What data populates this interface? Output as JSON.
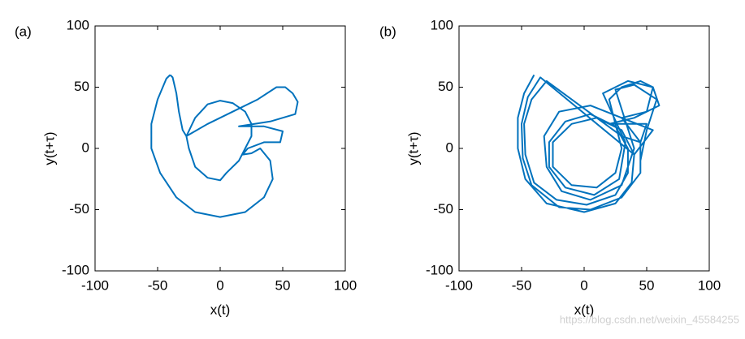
{
  "chart_data": [
    {
      "type": "line",
      "label": "(a)",
      "xlabel": "x(t)",
      "ylabel": "y(t+τ)",
      "color": "#0072bd",
      "xlim": [
        -100,
        100
      ],
      "ylim": [
        -100,
        100
      ],
      "xticks": [
        -100,
        -50,
        0,
        50,
        100
      ],
      "yticks": [
        -100,
        -50,
        0,
        50,
        100
      ],
      "x": [
        -40,
        -38,
        -35,
        -33,
        -30,
        -27,
        -20,
        -10,
        0,
        10,
        20,
        25,
        25,
        20,
        15,
        5,
        0,
        -10,
        -20,
        -25,
        -27,
        -10,
        10,
        30,
        45,
        52,
        58,
        62,
        60,
        40,
        15,
        35,
        50,
        48,
        35,
        22,
        18,
        25,
        32,
        40,
        42,
        35,
        20,
        0,
        -20,
        -35,
        -48,
        -55,
        -55,
        -50,
        -43,
        -40
      ],
      "y": [
        60,
        58,
        45,
        30,
        15,
        10,
        25,
        36,
        39,
        37,
        30,
        20,
        10,
        0,
        -10,
        -20,
        -26,
        -24,
        -15,
        0,
        10,
        20,
        30,
        40,
        50,
        50,
        45,
        38,
        28,
        22,
        18,
        18,
        14,
        5,
        5,
        0,
        -5,
        -4,
        0,
        -10,
        -25,
        -40,
        -52,
        -56,
        -52,
        -40,
        -20,
        0,
        20,
        40,
        57,
        60
      ]
    },
    {
      "type": "line",
      "label": "(b)",
      "xlabel": "x(t)",
      "ylabel": "y(t+τ)",
      "color": "#0072bd",
      "xlim": [
        -100,
        100
      ],
      "ylim": [
        -100,
        100
      ],
      "xticks": [
        -100,
        -50,
        0,
        50,
        100
      ],
      "yticks": [
        -100,
        -50,
        0,
        50,
        100
      ],
      "x": [
        -40,
        -48,
        -53,
        -53,
        -47,
        -30,
        0,
        25,
        38,
        40,
        30,
        10,
        -10,
        -25,
        -25,
        -10,
        10,
        25,
        30,
        20,
        30,
        45,
        55,
        60,
        40,
        20,
        50,
        45,
        30,
        -30,
        -42,
        -48,
        -47,
        -40,
        -22,
        2,
        25,
        35,
        35,
        25,
        5,
        -15,
        -28,
        -28,
        -15,
        8,
        28,
        33,
        15,
        35,
        55,
        50,
        30,
        55,
        40,
        -35,
        -45,
        -50,
        -49,
        -42,
        -20,
        5,
        30,
        45,
        45,
        30,
        5,
        -20,
        -32,
        -30,
        -18,
        5,
        30,
        40,
        25,
        40,
        58,
        50,
        45
      ],
      "y": [
        60,
        45,
        25,
        0,
        -25,
        -45,
        -52,
        -45,
        -28,
        -5,
        15,
        25,
        20,
        5,
        -15,
        -30,
        -32,
        -20,
        0,
        40,
        50,
        55,
        50,
        35,
        25,
        20,
        20,
        5,
        10,
        55,
        40,
        20,
        -5,
        -28,
        -42,
        -46,
        -38,
        -20,
        0,
        18,
        28,
        22,
        5,
        -15,
        -32,
        -38,
        -25,
        5,
        45,
        55,
        50,
        30,
        25,
        15,
        -5,
        58,
        42,
        20,
        -8,
        -30,
        -48,
        -50,
        -40,
        -20,
        5,
        25,
        35,
        30,
        10,
        -15,
        -35,
        -42,
        -30,
        0,
        48,
        52,
        40,
        15,
        -10
      ]
    }
  ],
  "watermark": "https://blog.csdn.net/weixin_45584255"
}
